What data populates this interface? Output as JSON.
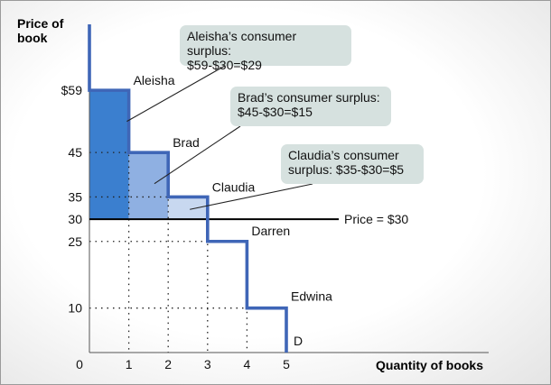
{
  "chart_data": {
    "type": "step",
    "ylabel": "Price of book",
    "xlabel": "Quantity of books",
    "origin_label": "0",
    "x_ticks": [
      "1",
      "2",
      "3",
      "4",
      "5"
    ],
    "y_ticks": [
      {
        "value": 59,
        "label": "$59"
      },
      {
        "value": 45,
        "label": "45"
      },
      {
        "value": 35,
        "label": "35"
      },
      {
        "value": 30,
        "label": "30"
      },
      {
        "value": 25,
        "label": "25"
      },
      {
        "value": 10,
        "label": "10"
      }
    ],
    "xlim": [
      0,
      5
    ],
    "ylim": [
      0,
      77
    ],
    "consumers": [
      {
        "name": "Aleisha",
        "quantity": 1,
        "willingness_to_pay": 59
      },
      {
        "name": "Brad",
        "quantity": 2,
        "willingness_to_pay": 45
      },
      {
        "name": "Claudia",
        "quantity": 3,
        "willingness_to_pay": 35
      },
      {
        "name": "Darren",
        "quantity": 4,
        "willingness_to_pay": 25
      },
      {
        "name": "Edwina",
        "quantity": 5,
        "willingness_to_pay": 10
      }
    ],
    "price": 30,
    "price_label": "Price = $30",
    "demand_label": "D",
    "surplus_colors": [
      "#3b7fcf",
      "#8fb0e2",
      "#c8d8f0"
    ],
    "demand_color": "#3f66b7",
    "annotations": [
      {
        "consumer": "Aleisha",
        "lines": [
          "Aleisha’s consumer surplus:",
          "$59-$30=$29"
        ]
      },
      {
        "consumer": "Brad",
        "lines": [
          "Brad’s consumer surplus:",
          "$45-$30=$15"
        ]
      },
      {
        "consumer": "Claudia",
        "lines": [
          "Claudia’s consumer",
          "surplus: $35-$30=$5"
        ]
      }
    ]
  }
}
